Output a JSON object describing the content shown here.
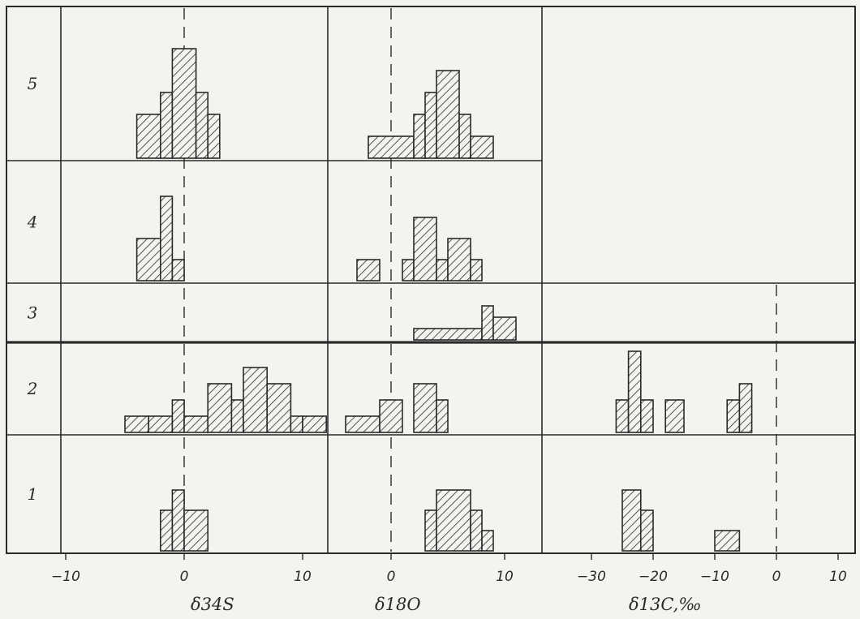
{
  "chart_data": [
    {
      "type": "bar",
      "variable": "δ34S",
      "xlabel": "δ34S",
      "xticks": [
        -10,
        0,
        10
      ],
      "xlim": [
        -11,
        12
      ],
      "rows": {
        "5": [
          [
            -4,
            -2,
            2
          ],
          [
            -2,
            -1,
            3
          ],
          [
            -1,
            1,
            5
          ],
          [
            1,
            2,
            3
          ],
          [
            2,
            3,
            2
          ]
        ],
        "4": [
          [
            -4,
            -2,
            2
          ],
          [
            -2,
            -1,
            4
          ],
          [
            -1,
            0,
            1
          ]
        ],
        "3": [],
        "2": [
          [
            -5,
            -3,
            1
          ],
          [
            -3,
            -1,
            1
          ],
          [
            -1,
            0,
            2
          ],
          [
            0,
            2,
            1
          ],
          [
            2,
            4,
            3
          ],
          [
            4,
            5,
            2
          ],
          [
            5,
            7,
            4
          ],
          [
            7,
            9,
            3
          ],
          [
            9,
            10,
            1
          ],
          [
            10,
            12,
            1
          ]
        ],
        "1": [
          [
            -2,
            -1,
            2
          ],
          [
            -1,
            0,
            3
          ],
          [
            0,
            2,
            2
          ]
        ]
      }
    },
    {
      "type": "bar",
      "variable": "δ18O",
      "xlabel": "δ18O",
      "xticks": [
        0,
        10
      ],
      "xlim": [
        -6,
        13
      ],
      "rows": {
        "5": [
          [
            -2,
            2,
            1
          ],
          [
            2,
            3,
            2
          ],
          [
            3,
            4,
            3
          ],
          [
            4,
            6,
            4
          ],
          [
            6,
            7,
            2
          ],
          [
            7,
            9,
            1
          ]
        ],
        "4": [
          [
            -3,
            -1,
            1
          ],
          [
            1,
            2,
            1
          ],
          [
            2,
            4,
            3
          ],
          [
            4,
            5,
            1
          ],
          [
            5,
            7,
            2
          ],
          [
            7,
            8,
            1
          ]
        ],
        "3": [
          [
            2,
            8,
            1
          ],
          [
            8,
            9,
            3
          ],
          [
            9,
            11,
            2
          ]
        ],
        "2": [
          [
            -4,
            -1,
            1
          ],
          [
            -1,
            1,
            2
          ],
          [
            2,
            4,
            3
          ],
          [
            4,
            5,
            2
          ]
        ],
        "1": [
          [
            3,
            4,
            2
          ],
          [
            4,
            7,
            3
          ],
          [
            7,
            8,
            2
          ],
          [
            8,
            9,
            1
          ]
        ]
      }
    },
    {
      "type": "bar",
      "variable": "δ13C, ‰",
      "xlabel": "δ13C,‰",
      "xticks": [
        -30,
        -20,
        -10,
        0,
        10
      ],
      "xlim": [
        -36,
        12
      ],
      "rows": {
        "5": null,
        "4": null,
        "3": [],
        "2": [
          [
            -26,
            -24,
            2
          ],
          [
            -24,
            -22,
            5
          ],
          [
            -22,
            -20,
            2
          ],
          [
            -18,
            -15,
            2
          ],
          [
            -8,
            -6,
            2
          ],
          [
            -6,
            -4,
            3
          ]
        ],
        "1": [
          [
            -25,
            -22,
            3
          ],
          [
            -22,
            -20,
            2
          ],
          [
            -10,
            -6,
            1
          ]
        ]
      }
    }
  ],
  "row_labels": [
    "5",
    "4",
    "3",
    "2",
    "1"
  ],
  "colors": {
    "ink": "#2a2a2a",
    "paper": "#f4f3ef"
  }
}
